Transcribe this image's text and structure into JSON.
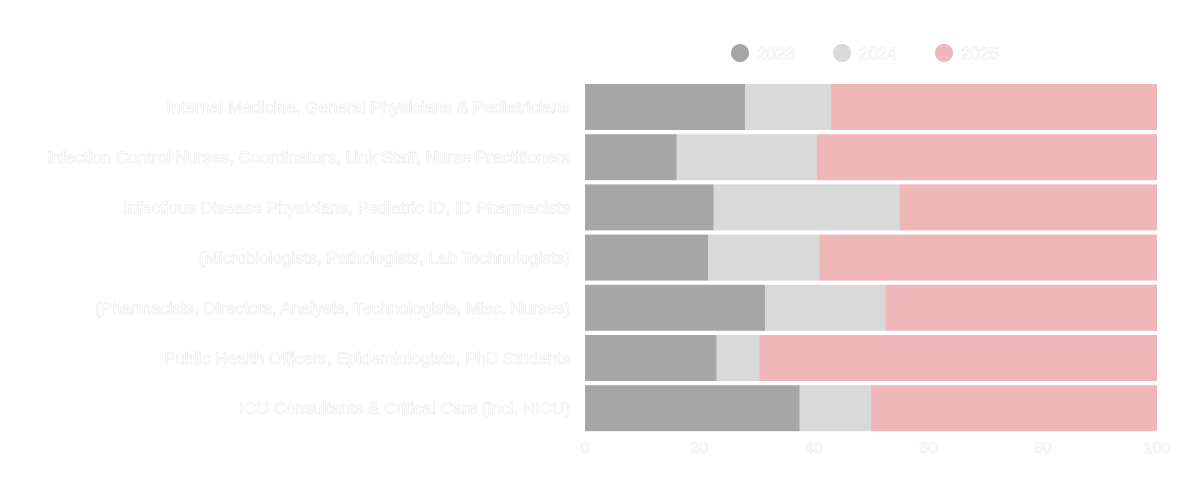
{
  "chart_data": {
    "type": "bar",
    "orientation": "horizontal",
    "stacked": true,
    "categories": [
      "Internal Medicine, General Physicians & Pediatricians",
      "Infection Control Nurses, Coordinators, Link Staff, Nurse Practitioners",
      "Infectious Disease Physicians, Pediatric ID, ID Pharmacists",
      "(Microbiologists, Pathologists, Lab Technologists)",
      "(Pharmacists, Directors, Analysts, Technologists, Misc. Nurses)",
      "Public Health Officers, Epidemiologists, PhD Students",
      "ICU Consultants & Critical Care (incl. NICU)"
    ],
    "series": [
      {
        "name": "2023",
        "color": "#a6a6a6",
        "values": [
          28,
          16,
          22.5,
          21.5,
          31.5,
          23,
          37.5
        ]
      },
      {
        "name": "2024",
        "color": "#d9d9d9",
        "values": [
          15,
          24.5,
          32.5,
          19.5,
          21,
          7.5,
          12.5
        ]
      },
      {
        "name": "2025",
        "color": "#f0b7b9",
        "values": [
          57,
          59.5,
          45,
          59,
          47.5,
          69.5,
          50
        ]
      }
    ],
    "xlim": [
      0,
      100
    ],
    "xticks": [
      "0",
      "20",
      "40",
      "60",
      "80",
      "100"
    ],
    "legend_position": "top",
    "grid": false
  }
}
